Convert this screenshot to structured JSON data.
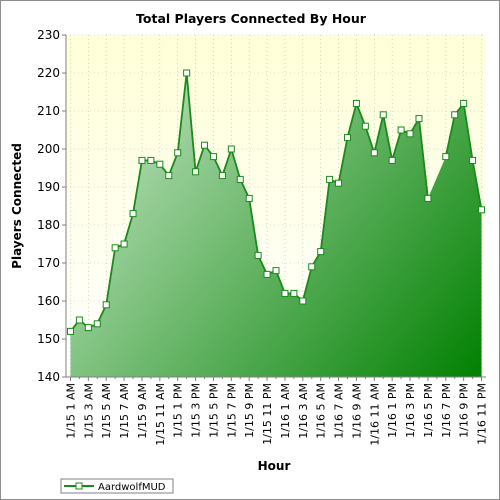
{
  "chart_data": {
    "type": "area",
    "title": "Total Players Connected By Hour",
    "xlabel": "Hour",
    "ylabel": "Players Connected",
    "ylim": [
      140,
      230
    ],
    "yticks": [
      140,
      150,
      160,
      170,
      180,
      190,
      200,
      210,
      220,
      230
    ],
    "grid": true,
    "legend_position": "bottom-left",
    "colors": {
      "line": "#1a8a1a",
      "area_light": "#d6eed6",
      "area_dark": "#008000",
      "plot_bg_top": "#ffffd8",
      "plot_bg_bottom": "#ffffff",
      "marker_fill": "#ffffff"
    },
    "x": [
      "1/15 1 AM",
      "1/15 2 AM",
      "1/15 3 AM",
      "1/15 4 AM",
      "1/15 5 AM",
      "1/15 6 AM",
      "1/15 7 AM",
      "1/15 8 AM",
      "1/15 9 AM",
      "1/15 10 AM",
      "1/15 11 AM",
      "1/15 12 PM",
      "1/15 1 PM",
      "1/15 2 PM",
      "1/15 3 PM",
      "1/15 4 PM",
      "1/15 5 PM",
      "1/15 6 PM",
      "1/15 7 PM",
      "1/15 8 PM",
      "1/15 9 PM",
      "1/15 10 PM",
      "1/15 11 PM",
      "1/16 12 AM",
      "1/16 1 AM",
      "1/16 2 AM",
      "1/16 3 AM",
      "1/16 4 AM",
      "1/16 5 AM",
      "1/16 6 AM",
      "1/16 7 AM",
      "1/16 8 AM",
      "1/16 9 AM",
      "1/16 10 AM",
      "1/16 11 AM",
      "1/16 12 PM",
      "1/16 1 PM",
      "1/16 2 PM",
      "1/16 3 PM",
      "1/16 4 PM",
      "1/16 5 PM",
      "1/16 6 PM",
      "1/16 7 PM",
      "1/16 8 PM",
      "1/16 9 PM",
      "1/16 10 PM",
      "1/16 11 PM"
    ],
    "xtick_labels": [
      "1/15 1 AM",
      "1/15 3 AM",
      "1/15 5 AM",
      "1/15 7 AM",
      "1/15 9 AM",
      "1/15 11 AM",
      "1/15 1 PM",
      "1/15 3 PM",
      "1/15 5 PM",
      "1/15 7 PM",
      "1/15 9 PM",
      "1/15 11 PM",
      "1/16 1 AM",
      "1/16 3 AM",
      "1/16 5 AM",
      "1/16 7 AM",
      "1/16 9 AM",
      "1/16 11 AM",
      "1/16 1 PM",
      "1/16 3 PM",
      "1/16 5 PM",
      "1/16 7 PM",
      "1/16 9 PM",
      "1/16 11 PM"
    ],
    "series": [
      {
        "name": "AardwolfMUD",
        "values": [
          152,
          155,
          153,
          154,
          159,
          174,
          175,
          183,
          197,
          197,
          196,
          193,
          199,
          220,
          194,
          201,
          198,
          193,
          200,
          192,
          187,
          172,
          167,
          168,
          162,
          162,
          160,
          169,
          173,
          192,
          191,
          203,
          212,
          206,
          199,
          209,
          197,
          205,
          204,
          208,
          187,
          null,
          198,
          209,
          212,
          197,
          184
        ]
      }
    ]
  }
}
